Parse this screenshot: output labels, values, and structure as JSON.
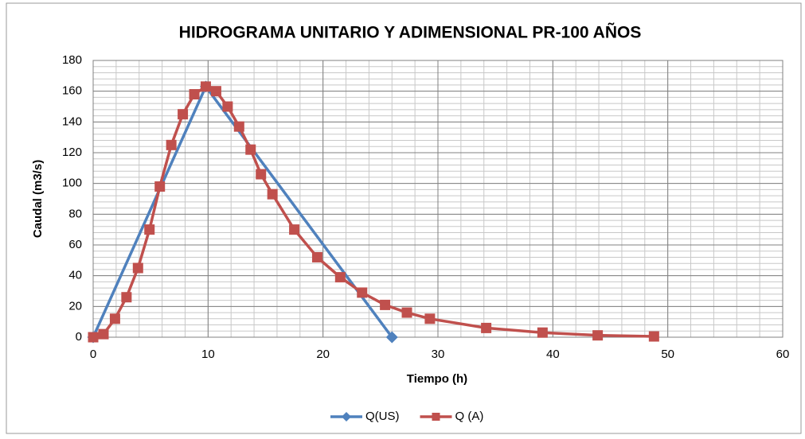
{
  "chart_data": {
    "type": "scatter",
    "title": "HIDROGRAMA UNITARIO Y ADIMENSIONAL PR-100 AÑOS",
    "x_label": "Tiempo (h)",
    "y_label": "Caudal (m3/s)",
    "xlim": [
      0,
      60
    ],
    "xticks": [
      0,
      10,
      20,
      30,
      40,
      50,
      60
    ],
    "ylim": [
      0,
      180
    ],
    "yticks": [
      0,
      20,
      40,
      60,
      80,
      100,
      120,
      140,
      160,
      180
    ],
    "grid": true,
    "minor_grid": {
      "x": 2,
      "y": 4
    },
    "legend": "bottom",
    "series": [
      {
        "name": "Q(US)",
        "color": "#4f81bd",
        "marker": "diamond",
        "x": [
          0,
          9.8,
          26
        ],
        "values": [
          0,
          163,
          0
        ]
      },
      {
        "name": "Q (A)",
        "color": "#c0504d",
        "marker": "square",
        "x": [
          0,
          0.9,
          1.9,
          2.9,
          3.9,
          4.9,
          5.8,
          6.8,
          7.8,
          8.8,
          9.8,
          10.7,
          11.7,
          12.7,
          13.7,
          14.6,
          15.6,
          17.5,
          19.5,
          21.5,
          23.4,
          25.4,
          27.3,
          29.3,
          34.2,
          39.1,
          43.9,
          48.8
        ],
        "values": [
          0,
          2,
          12,
          26,
          45,
          70,
          98,
          125,
          145,
          158,
          163,
          160,
          150,
          137,
          122,
          106,
          93,
          70,
          52,
          39,
          29,
          21,
          16,
          12,
          6,
          3,
          1.2,
          0.5
        ]
      }
    ]
  }
}
